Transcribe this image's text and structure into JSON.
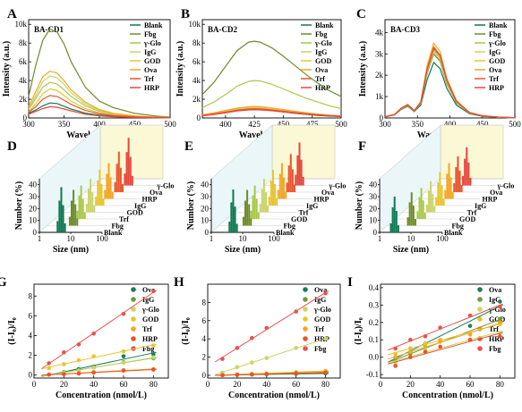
{
  "palette": {
    "Blank": "#0c7a52",
    "Fbg": "#6e8b2a",
    "γ-Glo": "#a8c94a",
    "IgG": "#c9d46a",
    "GOD": "#e9c430",
    "Ova": "#f4a623",
    "Trf": "#e8542c",
    "HRP": "#e8453c",
    "Fbg_red": "#e8534e",
    "Ova_green": "#1a7d57",
    "IgG_green": "#6f9b3a"
  },
  "chart_data": [
    {
      "panel": "A",
      "type": "line",
      "title": "BA-CD1",
      "xlabel": "Wavelength (nm)",
      "ylabel": "Intensity (a.u.)",
      "xlim": [
        300,
        500
      ],
      "ylim": [
        0,
        10500
      ],
      "xticks": [
        "300",
        "350",
        "400",
        "450",
        "500"
      ],
      "yticks": [
        "0",
        "2k",
        "4k",
        "6k",
        "8k",
        "10k"
      ],
      "yticks_values": [
        0,
        2000,
        4000,
        6000,
        8000,
        10000
      ],
      "xticks_values": [
        300,
        350,
        400,
        450,
        500
      ],
      "legend": [
        "Blank",
        "Fbg",
        "γ-Glo",
        "IgG",
        "GOD",
        "Ova",
        "Trf",
        "HRP"
      ],
      "x": [
        300,
        310,
        320,
        330,
        340,
        350,
        360,
        380,
        400,
        420,
        450,
        480,
        500
      ],
      "series": [
        {
          "name": "Blank",
          "values": [
            500,
            850,
            1300,
            1600,
            1550,
            1250,
            950,
            520,
            300,
            180,
            90,
            40,
            20
          ]
        },
        {
          "name": "Fbg",
          "values": [
            2300,
            5600,
            8300,
            9500,
            9200,
            7900,
            6000,
            3300,
            1800,
            1100,
            500,
            200,
            100
          ]
        },
        {
          "name": "γ-Glo",
          "values": [
            900,
            2100,
            3300,
            3800,
            3650,
            3000,
            2300,
            1300,
            700,
            400,
            180,
            80,
            40
          ]
        },
        {
          "name": "IgG",
          "values": [
            1000,
            2400,
            3900,
            4500,
            4300,
            3600,
            2700,
            1500,
            800,
            450,
            200,
            90,
            40
          ]
        },
        {
          "name": "GOD",
          "values": [
            700,
            1500,
            2600,
            3100,
            2950,
            2400,
            1800,
            1000,
            550,
            320,
            150,
            60,
            30
          ]
        },
        {
          "name": "Ova",
          "values": [
            1200,
            2800,
            4400,
            5000,
            4800,
            4000,
            3000,
            1700,
            900,
            500,
            220,
            90,
            40
          ]
        },
        {
          "name": "Trf",
          "values": [
            600,
            1200,
            2000,
            2400,
            2300,
            1900,
            1450,
            800,
            450,
            260,
            120,
            50,
            20
          ]
        },
        {
          "name": "HRP",
          "values": [
            400,
            700,
            1000,
            1200,
            1150,
            950,
            750,
            400,
            230,
            130,
            60,
            30,
            15
          ]
        }
      ]
    },
    {
      "panel": "B",
      "type": "line",
      "title": "BA-CD2",
      "xlabel": "Wavelength (nm)",
      "ylabel": "Intensity (a.u.)",
      "xlim": [
        380,
        500
      ],
      "ylim": [
        0,
        10500
      ],
      "xticks": [
        "400",
        "425",
        "450",
        "475",
        "500"
      ],
      "xticks_values": [
        400,
        425,
        450,
        475,
        500
      ],
      "yticks": [
        "0",
        "2k",
        "4k",
        "6k",
        "8k",
        "10k"
      ],
      "yticks_values": [
        0,
        2000,
        4000,
        6000,
        8000,
        10000
      ],
      "legend": [
        "Blank",
        "Fbg",
        "γ-Glo",
        "IgG",
        "GOD",
        "Ova",
        "Trf",
        "HRP"
      ],
      "x": [
        380,
        390,
        400,
        410,
        420,
        425,
        430,
        440,
        450,
        460,
        470,
        480,
        490,
        500
      ],
      "series": [
        {
          "name": "Blank",
          "values": [
            250,
            400,
            600,
            800,
            900,
            920,
            900,
            800,
            650,
            500,
            380,
            280,
            200,
            150
          ]
        },
        {
          "name": "Fbg",
          "values": [
            2500,
            3800,
            5500,
            7200,
            8100,
            8200,
            8100,
            7500,
            6600,
            5600,
            4600,
            3700,
            2900,
            2300
          ]
        },
        {
          "name": "γ-Glo",
          "values": [
            1100,
            1700,
            2500,
            3400,
            3900,
            4000,
            3950,
            3600,
            3100,
            2600,
            2100,
            1700,
            1300,
            1000
          ]
        },
        {
          "name": "IgG",
          "values": [
            300,
            480,
            700,
            950,
            1100,
            1120,
            1100,
            980,
            820,
            650,
            500,
            380,
            280,
            200
          ]
        },
        {
          "name": "GOD",
          "values": [
            280,
            450,
            650,
            880,
            1000,
            1030,
            1000,
            900,
            750,
            600,
            460,
            350,
            260,
            190
          ]
        },
        {
          "name": "Ova",
          "values": [
            350,
            550,
            800,
            1050,
            1200,
            1230,
            1200,
            1080,
            900,
            720,
            550,
            420,
            310,
            230
          ]
        },
        {
          "name": "Trf",
          "values": [
            260,
            420,
            620,
            840,
            960,
            980,
            960,
            860,
            720,
            570,
            440,
            330,
            250,
            180
          ]
        },
        {
          "name": "HRP",
          "values": [
            220,
            360,
            540,
            740,
            860,
            880,
            860,
            770,
            640,
            510,
            390,
            290,
            220,
            160
          ]
        }
      ]
    },
    {
      "panel": "C",
      "type": "line",
      "title": "BA-CD3",
      "xlabel": "Wavelength (nm)",
      "ylabel": "Intensity (a.u.)",
      "xlim": [
        300,
        500
      ],
      "ylim": [
        0,
        4600
      ],
      "xticks": [
        "300",
        "350",
        "400",
        "450",
        "500"
      ],
      "xticks_values": [
        300,
        350,
        400,
        450,
        500
      ],
      "yticks": [
        "0",
        "1k",
        "2k",
        "3k",
        "4k"
      ],
      "yticks_values": [
        0,
        1000,
        2000,
        3000,
        4000
      ],
      "legend": [
        "Blank",
        "Fbg",
        "γ-Glo",
        "IgG",
        "GOD",
        "Ova",
        "Trf",
        "HRP"
      ],
      "x": [
        300,
        315,
        325,
        335,
        345,
        355,
        365,
        375,
        385,
        395,
        410,
        430,
        450,
        475,
        500
      ],
      "series": [
        {
          "name": "Blank",
          "values": [
            50,
            150,
            400,
            550,
            300,
            600,
            1800,
            2600,
            2300,
            1400,
            600,
            200,
            80,
            30,
            10
          ]
        },
        {
          "name": "Fbg",
          "values": [
            50,
            150,
            420,
            580,
            320,
            680,
            2100,
            3000,
            2650,
            1600,
            700,
            230,
            90,
            35,
            10
          ]
        },
        {
          "name": "γ-Glo",
          "values": [
            50,
            160,
            440,
            600,
            330,
            700,
            2200,
            3150,
            2800,
            1700,
            740,
            240,
            95,
            35,
            10
          ]
        },
        {
          "name": "IgG",
          "values": [
            50,
            160,
            430,
            590,
            330,
            690,
            2150,
            3100,
            2750,
            1650,
            720,
            235,
            92,
            35,
            10
          ]
        },
        {
          "name": "GOD",
          "values": [
            60,
            170,
            460,
            620,
            340,
            740,
            2350,
            3350,
            2950,
            1800,
            780,
            255,
            100,
            38,
            12
          ]
        },
        {
          "name": "Ova",
          "values": [
            60,
            170,
            470,
            640,
            350,
            760,
            2450,
            3500,
            3100,
            1880,
            820,
            265,
            105,
            40,
            12
          ]
        },
        {
          "name": "Trf",
          "values": [
            55,
            165,
            450,
            610,
            335,
            720,
            2250,
            3250,
            2900,
            1750,
            760,
            250,
            98,
            37,
            11
          ]
        },
        {
          "name": "HRP",
          "values": [
            55,
            165,
            455,
            615,
            338,
            730,
            2300,
            3300,
            2920,
            1770,
            770,
            252,
            99,
            37,
            11
          ]
        }
      ]
    },
    {
      "panel": "D",
      "type": "bar",
      "subtype": "3d-histogram",
      "xlabel": "Size (nm)",
      "ylabel": "Number (%)",
      "xticks": [
        "1",
        "10",
        "100"
      ],
      "yticks": [
        "0",
        "10",
        "20",
        "30",
        "40"
      ],
      "categories": [
        "Blank",
        "Fbg",
        "Trf",
        "GOD",
        "IgG",
        "HRP",
        "Ova",
        "γ-Glo"
      ],
      "peak_size_nm": [
        5,
        7,
        7,
        8,
        9,
        10,
        12,
        14
      ],
      "peak_number_pct": [
        38,
        30,
        28,
        28,
        30,
        30,
        34,
        40
      ]
    },
    {
      "panel": "E",
      "type": "bar",
      "subtype": "3d-histogram",
      "xlabel": "Size (nm)",
      "ylabel": "Number (%)",
      "xticks": [
        "1",
        "10",
        "100"
      ],
      "yticks": [
        "0",
        "10",
        "20",
        "30",
        "40"
      ],
      "categories": [
        "Blank",
        "Fbg",
        "GOD",
        "Trf",
        "IgG",
        "HRP",
        "Ova",
        "γ-Glo"
      ],
      "peak_size_nm": [
        5,
        8,
        8,
        9,
        10,
        11,
        12,
        13
      ],
      "peak_number_pct": [
        36,
        30,
        28,
        28,
        30,
        30,
        32,
        36
      ]
    },
    {
      "panel": "F",
      "type": "bar",
      "subtype": "3d-histogram",
      "xlabel": "Size (nm)",
      "ylabel": "Number (%)",
      "xticks": [
        "1",
        "10",
        "100"
      ],
      "yticks": [
        "0",
        "10",
        "20",
        "30",
        "40"
      ],
      "categories": [
        "Blank",
        "Fbg",
        "GOD",
        "Trf",
        "IgG",
        "HRP",
        "Ova",
        "γ-Glo"
      ],
      "peak_size_nm": [
        3,
        6,
        7,
        8,
        9,
        10,
        11,
        12
      ],
      "peak_number_pct": [
        30,
        28,
        26,
        26,
        28,
        30,
        30,
        32
      ]
    },
    {
      "panel": "G",
      "type": "scatter",
      "xlabel": "Concentration (nmol/L)",
      "ylabel": "(I-I₀)/I₀",
      "xlim": [
        0,
        90
      ],
      "ylim": [
        -0.3,
        9.2
      ],
      "xticks": [
        "0",
        "20",
        "40",
        "60",
        "80"
      ],
      "xticks_values": [
        0,
        20,
        40,
        60,
        80
      ],
      "yticks": [
        "0",
        "2",
        "4",
        "6",
        "8"
      ],
      "yticks_values": [
        0,
        2,
        4,
        6,
        8
      ],
      "legend": [
        "Ova",
        "IgG",
        "γ-Glo",
        "GOD",
        "Trf",
        "HRP",
        "Fbg"
      ],
      "x": [
        10,
        20,
        30,
        40,
        60,
        80
      ],
      "series": [
        {
          "name": "Ova",
          "values": [
            0.05,
            0.3,
            0.6,
            0.85,
            1.9,
            2.1
          ]
        },
        {
          "name": "IgG",
          "values": [
            0.05,
            0.25,
            0.5,
            0.8,
            1.3,
            1.7
          ]
        },
        {
          "name": "γ-Glo",
          "values": [
            0.05,
            0.25,
            0.45,
            0.75,
            1.25,
            1.8
          ]
        },
        {
          "name": "GOD",
          "values": [
            0.7,
            1.1,
            1.5,
            1.9,
            2.4,
            3.0
          ]
        },
        {
          "name": "Trf",
          "values": [
            0.05,
            0.1,
            0.2,
            0.3,
            0.5,
            0.6
          ]
        },
        {
          "name": "HRP",
          "values": [
            0.05,
            0.1,
            0.15,
            0.25,
            0.45,
            0.55
          ]
        },
        {
          "name": "Fbg",
          "values": [
            1.2,
            2.3,
            3.1,
            4.2,
            6.2,
            8.5
          ]
        }
      ]
    },
    {
      "panel": "H",
      "type": "scatter",
      "xlabel": "Concentration (nmol/L)",
      "ylabel": "(I-I₀)/I₀",
      "xlim": [
        0,
        90
      ],
      "ylim": [
        -0.3,
        10
      ],
      "xticks": [
        "0",
        "20",
        "40",
        "60",
        "80"
      ],
      "xticks_values": [
        0,
        20,
        40,
        60,
        80
      ],
      "yticks": [
        "0",
        "2",
        "4",
        "6",
        "8"
      ],
      "yticks_values": [
        0,
        2,
        4,
        6,
        8
      ],
      "legend": [
        "Ova",
        "IgG",
        "γ-Glo",
        "GOD",
        "Trf",
        "HRP",
        "Fbg"
      ],
      "x": [
        10,
        20,
        30,
        40,
        60,
        80
      ],
      "series": [
        {
          "name": "Ova",
          "values": [
            0.02,
            0.05,
            0.08,
            0.1,
            0.15,
            0.2
          ]
        },
        {
          "name": "IgG",
          "values": [
            0.02,
            0.05,
            0.1,
            0.12,
            0.2,
            0.3
          ]
        },
        {
          "name": "γ-Glo",
          "values": [
            0.3,
            0.9,
            1.4,
            1.9,
            3.0,
            4.0
          ]
        },
        {
          "name": "GOD",
          "values": [
            0.05,
            0.1,
            0.15,
            0.2,
            0.35,
            0.5
          ]
        },
        {
          "name": "Trf",
          "values": [
            0.03,
            0.08,
            0.12,
            0.18,
            0.3,
            0.4
          ]
        },
        {
          "name": "HRP",
          "values": [
            0.02,
            0.06,
            0.1,
            0.14,
            0.22,
            0.3
          ]
        },
        {
          "name": "Fbg",
          "values": [
            1.8,
            3.0,
            4.1,
            5.2,
            7.0,
            9.0
          ]
        }
      ]
    },
    {
      "panel": "I",
      "type": "scatter",
      "xlabel": "Concentration (nmol/L)",
      "ylabel": "(I-I₀)/I₀",
      "xlim": [
        0,
        90
      ],
      "ylim": [
        -0.12,
        0.42
      ],
      "xticks": [
        "0",
        "20",
        "40",
        "60",
        "80"
      ],
      "xticks_values": [
        0,
        20,
        40,
        60,
        80
      ],
      "yticks": [
        "-0.1",
        "0.0",
        "0.1",
        "0.2",
        "0.3",
        "0.4"
      ],
      "yticks_values": [
        -0.1,
        0.0,
        0.1,
        0.2,
        0.3,
        0.4
      ],
      "legend": [
        "Ova",
        "IgG",
        "γ-Glo",
        "GOD",
        "Trf",
        "HRP",
        "Fbg"
      ],
      "x": [
        10,
        20,
        30,
        40,
        60,
        80
      ],
      "series": [
        {
          "name": "Ova",
          "values": [
            0.0,
            0.05,
            0.08,
            0.1,
            0.18,
            0.32
          ]
        },
        {
          "name": "IgG",
          "values": [
            -0.02,
            0.02,
            0.06,
            0.09,
            0.14,
            0.22
          ]
        },
        {
          "name": "γ-Glo",
          "values": [
            -0.03,
            0.0,
            0.04,
            0.06,
            0.1,
            0.14
          ]
        },
        {
          "name": "GOD",
          "values": [
            0.02,
            0.05,
            0.08,
            0.1,
            0.14,
            0.19
          ]
        },
        {
          "name": "Trf",
          "values": [
            0.0,
            0.03,
            0.06,
            0.09,
            0.13,
            0.2
          ]
        },
        {
          "name": "HRP",
          "values": [
            -0.05,
            0.0,
            0.03,
            0.06,
            0.1,
            0.12
          ]
        },
        {
          "name": "Fbg",
          "values": [
            0.05,
            0.1,
            0.12,
            0.17,
            0.24,
            0.29
          ]
        }
      ]
    }
  ]
}
